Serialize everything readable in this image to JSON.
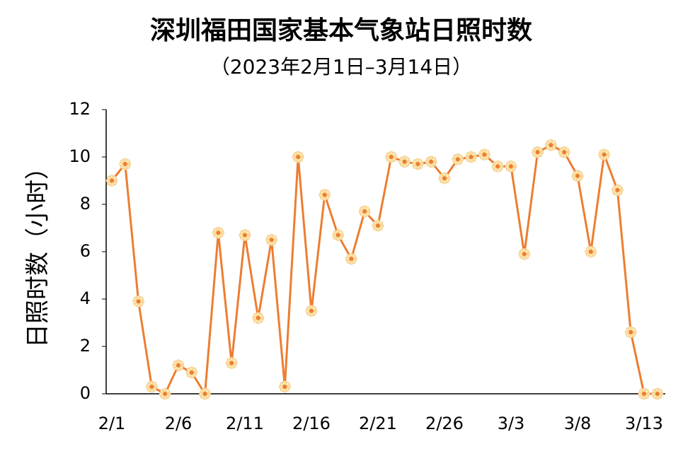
{
  "chart_data": {
    "type": "line",
    "title": "深圳福田国家基本气象站日照时数",
    "subtitle": "（2023年2月1日–3月14日）",
    "y_label": "日照时数（小时）",
    "categories": [
      "2/1",
      null,
      null,
      null,
      null,
      "2/6",
      null,
      null,
      null,
      null,
      "2/11",
      null,
      null,
      null,
      null,
      "2/16",
      null,
      null,
      null,
      null,
      "2/21",
      null,
      null,
      null,
      null,
      "2/26",
      null,
      null,
      null,
      null,
      "3/3",
      null,
      null,
      null,
      null,
      "3/8",
      null,
      null,
      null,
      null,
      "3/13",
      null
    ],
    "series": [
      {
        "name": "日照时数",
        "color": "#ED7D31",
        "values": [
          9.0,
          9.7,
          3.9,
          0.3,
          0.0,
          1.2,
          0.9,
          0.0,
          6.8,
          1.3,
          6.7,
          3.2,
          6.5,
          0.3,
          10.0,
          3.5,
          8.4,
          6.7,
          5.7,
          7.7,
          7.1,
          10.0,
          9.8,
          9.7,
          9.8,
          9.1,
          9.9,
          10.0,
          10.1,
          9.6,
          9.6,
          5.9,
          10.2,
          10.5,
          10.2,
          9.2,
          6.0,
          10.1,
          8.6,
          2.6,
          0.0,
          0.0
        ]
      }
    ],
    "ylim": [
      0,
      12
    ],
    "yticks": [
      0,
      2,
      4,
      6,
      8,
      10,
      12
    ],
    "grid": false
  }
}
